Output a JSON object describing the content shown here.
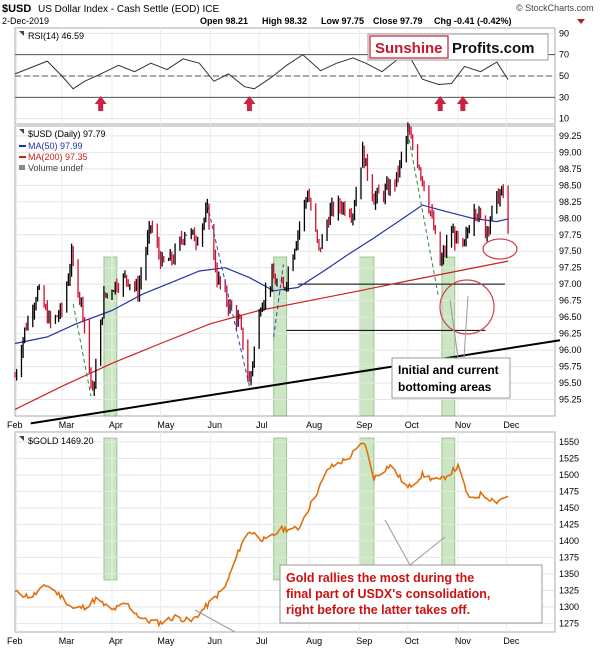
{
  "header": {
    "symbol": "$USD",
    "name": "US Dollar Index - Cash Settle (EOD) ICE",
    "date": "2-Dec-2019",
    "open": "Open 98.21",
    "high": "High 98.32",
    "low": "Low 97.75",
    "close": "Close 97.79",
    "chg": "Chg -0.41 (-0.42%)",
    "watermark": "© StockCharts.com"
  },
  "logo": {
    "part1": "Sunshine",
    "part2": "Profits.com"
  },
  "colors": {
    "price_up": "#000000",
    "price_down": "#cc1133",
    "ma50": "#2233aa",
    "ma200": "#cc2222",
    "gold": "#e07010",
    "green_zone": "#8cc878",
    "arrow": "#cc2244",
    "annotation_text": "#cc1111"
  },
  "annotations": {
    "bottoming": [
      "Initial and current",
      "bottoming areas"
    ],
    "gold_note": [
      "Gold rallies the most during the",
      "final part of USDX's consolidation,",
      "right before the latter takes off."
    ]
  },
  "chart_data": [
    {
      "type": "line",
      "panel": "RSI",
      "legend": "RSI(14) 46.59",
      "y_ticks": [
        10,
        30,
        50,
        70,
        90
      ],
      "ylim": [
        5,
        95
      ],
      "reference_lines": [
        30,
        50,
        70
      ],
      "x": [
        "2019-01-31",
        "2019-02-10",
        "2019-02-20",
        "2019-03-01",
        "2019-03-08",
        "2019-03-15",
        "2019-03-25",
        "2019-04-05",
        "2019-04-15",
        "2019-04-25",
        "2019-05-05",
        "2019-05-15",
        "2019-05-25",
        "2019-06-03",
        "2019-06-12",
        "2019-06-22",
        "2019-06-28",
        "2019-07-08",
        "2019-07-18",
        "2019-07-28",
        "2019-08-08",
        "2019-08-18",
        "2019-08-28",
        "2019-09-05",
        "2019-09-15",
        "2019-09-25",
        "2019-10-01",
        "2019-10-10",
        "2019-10-20",
        "2019-10-28",
        "2019-11-05",
        "2019-11-15",
        "2019-11-25",
        "2019-12-02"
      ],
      "values": [
        52,
        58,
        64,
        50,
        38,
        45,
        52,
        60,
        54,
        62,
        56,
        66,
        62,
        45,
        52,
        40,
        38,
        48,
        60,
        70,
        55,
        62,
        67,
        62,
        54,
        66,
        71,
        47,
        42,
        43,
        59,
        54,
        63,
        46.59
      ],
      "arrow_dates": [
        "2019-03-25",
        "2019-06-25",
        "2019-10-21",
        "2019-11-04"
      ]
    },
    {
      "type": "line",
      "panel": "USD",
      "title": "$USD (Daily) 97.79",
      "y_ticks": [
        95.25,
        95.5,
        95.75,
        96.0,
        96.25,
        96.5,
        96.75,
        97.0,
        97.25,
        97.5,
        97.75,
        98.0,
        98.25,
        98.5,
        98.75,
        99.0,
        99.25
      ],
      "ylim": [
        95.0,
        99.4
      ],
      "series": [
        {
          "name": "$USD (Daily) 97.79",
          "x": [
            "2019-01-31",
            "2019-02-06",
            "2019-02-14",
            "2019-02-22",
            "2019-03-01",
            "2019-03-07",
            "2019-03-14",
            "2019-03-20",
            "2019-03-27",
            "2019-04-03",
            "2019-04-10",
            "2019-04-17",
            "2019-04-25",
            "2019-05-02",
            "2019-05-09",
            "2019-05-16",
            "2019-05-23",
            "2019-05-30",
            "2019-06-05",
            "2019-06-12",
            "2019-06-19",
            "2019-06-25",
            "2019-07-02",
            "2019-07-09",
            "2019-07-16",
            "2019-07-23",
            "2019-07-31",
            "2019-08-07",
            "2019-08-14",
            "2019-08-21",
            "2019-08-28",
            "2019-09-03",
            "2019-09-10",
            "2019-09-17",
            "2019-09-24",
            "2019-10-01",
            "2019-10-08",
            "2019-10-15",
            "2019-10-21",
            "2019-10-28",
            "2019-11-04",
            "2019-11-11",
            "2019-11-18",
            "2019-11-25",
            "2019-11-29",
            "2019-12-02"
          ],
          "values": [
            95.6,
            96.3,
            96.9,
            96.4,
            96.6,
            97.4,
            96.6,
            95.3,
            96.8,
            97.0,
            97.1,
            96.9,
            97.9,
            97.3,
            97.4,
            97.8,
            97.7,
            98.1,
            97.1,
            96.7,
            96.4,
            95.5,
            96.7,
            97.1,
            96.9,
            97.6,
            98.4,
            97.5,
            98.1,
            98.2,
            98.1,
            99.0,
            98.3,
            98.4,
            98.6,
            99.3,
            98.8,
            98.1,
            97.3,
            97.8,
            97.5,
            98.2,
            97.8,
            98.3,
            98.4,
            97.79
          ]
        },
        {
          "name": "MA(50) 97.99",
          "x": [
            "2019-01-31",
            "2019-02-20",
            "2019-03-10",
            "2019-04-01",
            "2019-04-20",
            "2019-05-10",
            "2019-05-25",
            "2019-06-10",
            "2019-06-25",
            "2019-07-10",
            "2019-07-25",
            "2019-08-10",
            "2019-08-25",
            "2019-09-10",
            "2019-09-25",
            "2019-10-10",
            "2019-10-25",
            "2019-11-10",
            "2019-11-25",
            "2019-12-02"
          ],
          "values": [
            96.1,
            96.2,
            96.4,
            96.6,
            96.85,
            97.05,
            97.2,
            97.25,
            97.1,
            96.9,
            96.95,
            97.2,
            97.45,
            97.7,
            97.95,
            98.2,
            98.1,
            98.0,
            97.95,
            97.99
          ]
        },
        {
          "name": "MA(200) 97.35",
          "x": [
            "2019-01-31",
            "2019-03-01",
            "2019-04-01",
            "2019-05-01",
            "2019-06-01",
            "2019-07-01",
            "2019-08-01",
            "2019-09-01",
            "2019-10-01",
            "2019-11-01",
            "2019-12-02"
          ],
          "values": [
            95.1,
            95.45,
            95.8,
            96.1,
            96.4,
            96.6,
            96.75,
            96.9,
            97.05,
            97.2,
            97.35
          ]
        },
        {
          "name": "Volume undef",
          "x": [],
          "values": []
        }
      ],
      "horizontal_levels": [
        97.0,
        96.3
      ],
      "trendline": {
        "x": [
          "2019-03-25",
          "2019-12-31"
        ],
        "values": [
          95.1,
          96.15
        ]
      },
      "x_ticks": [
        "Feb",
        "Mar",
        "Apr",
        "May",
        "Jun",
        "Jul",
        "Aug",
        "Sep",
        "Oct",
        "Nov",
        "Dec"
      ]
    },
    {
      "type": "line",
      "panel": "GOLD",
      "title": "$GOLD 1469.20",
      "series_name": "$GOLD 1469.20",
      "y_ticks": [
        1275,
        1300,
        1325,
        1350,
        1375,
        1400,
        1425,
        1450,
        1475,
        1500,
        1525,
        1550
      ],
      "ylim": [
        1262,
        1565
      ],
      "x": [
        "2019-01-31",
        "2019-02-10",
        "2019-02-20",
        "2019-03-01",
        "2019-03-08",
        "2019-03-15",
        "2019-03-22",
        "2019-04-01",
        "2019-04-10",
        "2019-04-20",
        "2019-05-01",
        "2019-05-10",
        "2019-05-20",
        "2019-05-31",
        "2019-06-10",
        "2019-06-20",
        "2019-06-25",
        "2019-07-05",
        "2019-07-15",
        "2019-07-25",
        "2019-08-05",
        "2019-08-13",
        "2019-08-25",
        "2019-09-04",
        "2019-09-10",
        "2019-09-20",
        "2019-10-01",
        "2019-10-10",
        "2019-10-20",
        "2019-11-01",
        "2019-11-08",
        "2019-11-15",
        "2019-11-25",
        "2019-12-02"
      ],
      "values": [
        1322,
        1315,
        1333,
        1315,
        1297,
        1300,
        1312,
        1295,
        1305,
        1280,
        1276,
        1285,
        1278,
        1305,
        1330,
        1395,
        1415,
        1400,
        1418,
        1418,
        1470,
        1510,
        1525,
        1550,
        1495,
        1515,
        1480,
        1500,
        1490,
        1512,
        1462,
        1470,
        1460,
        1469.2
      ]
    }
  ],
  "green_zones": [
    {
      "start": "2019-03-27",
      "end": "2019-04-04",
      "panels": [
        "USD",
        "GOLD"
      ]
    },
    {
      "start": "2019-07-10",
      "end": "2019-07-18",
      "panels": [
        "USD",
        "GOLD"
      ]
    },
    {
      "start": "2019-09-01",
      "end": "2019-09-10",
      "panels": [
        "USD",
        "GOLD"
      ]
    },
    {
      "start": "2019-10-22",
      "end": "2019-10-30",
      "panels": [
        "USD",
        "GOLD"
      ]
    }
  ]
}
